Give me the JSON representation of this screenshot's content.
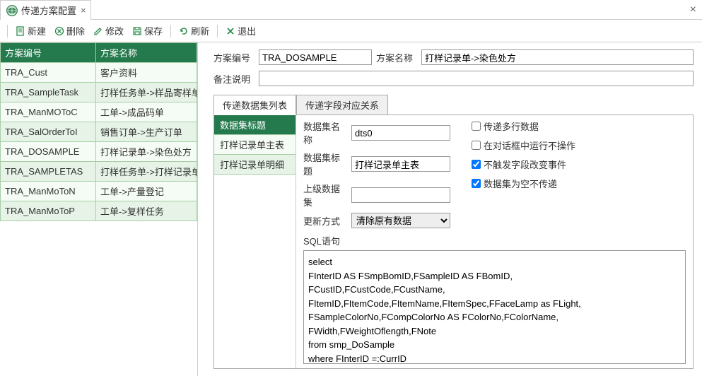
{
  "tabTitle": "传递方案配置",
  "toolbar": {
    "new": "新建",
    "delete": "删除",
    "edit": "修改",
    "save": "保存",
    "refresh": "刷新",
    "exit": "退出"
  },
  "leftGrid": {
    "col1": "方案编号",
    "col2": "方案名称",
    "rows": [
      [
        "TRA_Cust",
        "客户资料"
      ],
      [
        "TRA_SampleTask",
        "打样任务单->样品寄样单"
      ],
      [
        "TRA_ManMOToC",
        "工单->成品码单"
      ],
      [
        "TRA_SalOrderToI",
        "销售订单->生产订单"
      ],
      [
        "TRA_DOSAMPLE",
        "打样记录单->染色处方"
      ],
      [
        "TRA_SAMPLETAS",
        "打样任务单->打样记录单"
      ],
      [
        "TRA_ManMoToN",
        "工单->产量登记"
      ],
      [
        "TRA_ManMoToP",
        "工单->复样任务"
      ]
    ]
  },
  "form": {
    "codeLabel": "方案编号",
    "codeValue": "TRA_DOSAMPLE",
    "nameLabel": "方案名称",
    "nameValue": "打样记录单->染色处方",
    "remarkLabel": "备注说明",
    "remarkValue": ""
  },
  "subTabs": {
    "t1": "传递数据集列表",
    "t2": "传递字段对应关系"
  },
  "dsList": {
    "header": "数据集标题",
    "items": [
      "打样记录单主表",
      "打样记录单明细"
    ]
  },
  "dsDetail": {
    "nameLbl": "数据集名称",
    "nameVal": "dts0",
    "titleLbl": "数据集标题",
    "titleVal": "打样记录单主表",
    "parentLbl": "上级数据集",
    "parentVal": "",
    "updateLbl": "更新方式",
    "updateVal": "清除原有数据",
    "chk1": "传递多行数据",
    "chk2": "在对话框中运行不操作",
    "chk3": "不触发字段改变事件",
    "chk4": "数据集为空不传递",
    "sqlLbl": "SQL语句",
    "sqlVal": "select\nFInterID AS FSmpBomID,FSampleID AS FBomID,\nFCustID,FCustCode,FCustName,\nFItemID,FItemCode,FItemName,FItemSpec,FFaceLamp as FLight,\nFSampleColorNo,FCompColorNo AS FColorNo,FColorName,\nFWidth,FWeightOflength,FNote\nfrom smp_DoSample\nwhere FInterID =:CurrID"
  },
  "colors": {
    "headerGreen": "#247a4d",
    "rowAlt": "#e6f3e6",
    "rowNorm": "#f5fbf5"
  }
}
